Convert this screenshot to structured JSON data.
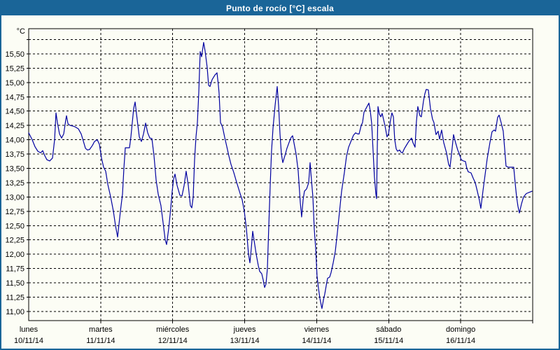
{
  "window": {
    "title": "Punto de rocío [°C] escala"
  },
  "colors": {
    "titlebar": "#1A6598",
    "border": "#1A6598",
    "background": "#FCFDF5",
    "line": "#0000A0",
    "grid": "#000000",
    "axis": "#000000",
    "title_text": "#FFFFFF",
    "label_text": "#000000"
  },
  "chart_data": {
    "type": "line",
    "title": "Punto de rocío [°C] escala",
    "ylabel": "°C",
    "xlabel": "",
    "unit_label": "°C",
    "grid": "dashed",
    "legend": "none",
    "ylim": [
      10.84,
      15.94
    ],
    "xlim_days": [
      0,
      7
    ],
    "y_axis": {
      "tick_step": 0.25,
      "ticks": [
        {
          "v": 15.75,
          "label": ""
        },
        {
          "v": 15.5,
          "label": "15,50"
        },
        {
          "v": 15.25,
          "label": "15,25"
        },
        {
          "v": 15.0,
          "label": "15,00"
        },
        {
          "v": 14.75,
          "label": "14,75"
        },
        {
          "v": 14.5,
          "label": "14,50"
        },
        {
          "v": 14.25,
          "label": "14,25"
        },
        {
          "v": 14.0,
          "label": "14,00"
        },
        {
          "v": 13.75,
          "label": "13,75"
        },
        {
          "v": 13.5,
          "label": "13,50"
        },
        {
          "v": 13.25,
          "label": "13,25"
        },
        {
          "v": 13.0,
          "label": "13,00"
        },
        {
          "v": 12.75,
          "label": "12,75"
        },
        {
          "v": 12.5,
          "label": "12,50"
        },
        {
          "v": 12.25,
          "label": "12,25"
        },
        {
          "v": 12.0,
          "label": "12,00"
        },
        {
          "v": 11.75,
          "label": "11,75"
        },
        {
          "v": 11.5,
          "label": "11,50"
        },
        {
          "v": 11.25,
          "label": "11,25"
        },
        {
          "v": 11.0,
          "label": "11,00"
        }
      ]
    },
    "x_axis": {
      "days": [
        {
          "name": "lunes",
          "date": "10/11/14"
        },
        {
          "name": "martes",
          "date": "11/11/14"
        },
        {
          "name": "miércoles",
          "date": "12/11/14"
        },
        {
          "name": "jueves",
          "date": "13/11/14"
        },
        {
          "name": "viernes",
          "date": "14/11/14"
        },
        {
          "name": "sábado",
          "date": "15/11/14"
        },
        {
          "name": "domingo",
          "date": "16/11/14"
        }
      ]
    },
    "series": [
      {
        "name": "Punto de rocío",
        "color": "#0000A0",
        "points": [
          [
            0.0,
            14.12
          ],
          [
            0.049,
            14.0
          ],
          [
            0.087,
            13.88
          ],
          [
            0.126,
            13.8
          ],
          [
            0.165,
            13.77
          ],
          [
            0.194,
            13.81
          ],
          [
            0.224,
            13.72
          ],
          [
            0.253,
            13.65
          ],
          [
            0.292,
            13.63
          ],
          [
            0.331,
            13.68
          ],
          [
            0.36,
            14.0
          ],
          [
            0.379,
            14.47
          ],
          [
            0.399,
            14.3
          ],
          [
            0.428,
            14.1
          ],
          [
            0.457,
            14.03
          ],
          [
            0.486,
            14.1
          ],
          [
            0.515,
            14.35
          ],
          [
            0.525,
            14.42
          ],
          [
            0.545,
            14.28
          ],
          [
            0.574,
            14.25
          ],
          [
            0.613,
            14.24
          ],
          [
            0.651,
            14.22
          ],
          [
            0.69,
            14.19
          ],
          [
            0.729,
            14.1
          ],
          [
            0.758,
            13.98
          ],
          [
            0.788,
            13.85
          ],
          [
            0.817,
            13.82
          ],
          [
            0.846,
            13.83
          ],
          [
            0.885,
            13.9
          ],
          [
            0.914,
            13.97
          ],
          [
            0.953,
            14.0
          ],
          [
            0.982,
            13.92
          ],
          [
            1.011,
            13.68
          ],
          [
            1.04,
            13.52
          ],
          [
            1.069,
            13.45
          ],
          [
            1.099,
            13.22
          ],
          [
            1.138,
            13.0
          ],
          [
            1.176,
            12.75
          ],
          [
            1.206,
            12.5
          ],
          [
            1.235,
            12.3
          ],
          [
            1.274,
            12.75
          ],
          [
            1.303,
            13.05
          ],
          [
            1.322,
            13.5
          ],
          [
            1.342,
            13.86
          ],
          [
            1.4,
            13.86
          ],
          [
            1.419,
            14.05
          ],
          [
            1.439,
            14.3
          ],
          [
            1.458,
            14.55
          ],
          [
            1.478,
            14.66
          ],
          [
            1.507,
            14.35
          ],
          [
            1.536,
            14.05
          ],
          [
            1.565,
            13.97
          ],
          [
            1.594,
            14.1
          ],
          [
            1.624,
            14.29
          ],
          [
            1.653,
            14.12
          ],
          [
            1.682,
            14.03
          ],
          [
            1.711,
            14.02
          ],
          [
            1.74,
            13.72
          ],
          [
            1.769,
            13.3
          ],
          [
            1.799,
            13.05
          ],
          [
            1.837,
            12.85
          ],
          [
            1.867,
            12.55
          ],
          [
            1.896,
            12.25
          ],
          [
            1.915,
            12.17
          ],
          [
            1.944,
            12.45
          ],
          [
            1.973,
            12.8
          ],
          [
            1.993,
            13.1
          ],
          [
            2.013,
            13.32
          ],
          [
            2.032,
            13.4
          ],
          [
            2.061,
            13.2
          ],
          [
            2.1,
            13.03
          ],
          [
            2.129,
            13.02
          ],
          [
            2.158,
            13.2
          ],
          [
            2.187,
            13.45
          ],
          [
            2.217,
            13.2
          ],
          [
            2.246,
            12.85
          ],
          [
            2.265,
            12.81
          ],
          [
            2.285,
            13.0
          ],
          [
            2.304,
            13.66
          ],
          [
            2.324,
            14.05
          ],
          [
            2.343,
            14.3
          ],
          [
            2.362,
            14.8
          ],
          [
            2.382,
            15.54
          ],
          [
            2.401,
            15.45
          ],
          [
            2.43,
            15.7
          ],
          [
            2.45,
            15.55
          ],
          [
            2.479,
            15.26
          ],
          [
            2.499,
            14.95
          ],
          [
            2.518,
            14.93
          ],
          [
            2.547,
            15.05
          ],
          [
            2.586,
            15.13
          ],
          [
            2.615,
            15.17
          ],
          [
            2.635,
            14.95
          ],
          [
            2.644,
            14.81
          ],
          [
            2.664,
            14.3
          ],
          [
            2.693,
            14.22
          ],
          [
            2.722,
            14.04
          ],
          [
            2.751,
            13.88
          ],
          [
            2.78,
            13.72
          ],
          [
            2.81,
            13.57
          ],
          [
            2.848,
            13.43
          ],
          [
            2.878,
            13.3
          ],
          [
            2.907,
            13.18
          ],
          [
            2.936,
            13.06
          ],
          [
            2.965,
            12.95
          ],
          [
            2.994,
            12.75
          ],
          [
            3.024,
            12.45
          ],
          [
            3.053,
            12.0
          ],
          [
            3.072,
            11.85
          ],
          [
            3.092,
            12.1
          ],
          [
            3.111,
            12.4
          ],
          [
            3.13,
            12.25
          ],
          [
            3.16,
            12.0
          ],
          [
            3.189,
            11.8
          ],
          [
            3.208,
            11.7
          ],
          [
            3.237,
            11.66
          ],
          [
            3.257,
            11.55
          ],
          [
            3.276,
            11.42
          ],
          [
            3.296,
            11.48
          ],
          [
            3.315,
            11.75
          ],
          [
            3.335,
            12.5
          ],
          [
            3.354,
            13.2
          ],
          [
            3.373,
            13.8
          ],
          [
            3.393,
            14.2
          ],
          [
            3.422,
            14.6
          ],
          [
            3.451,
            14.93
          ],
          [
            3.471,
            14.6
          ],
          [
            3.49,
            14.1
          ],
          [
            3.51,
            13.75
          ],
          [
            3.529,
            13.6
          ],
          [
            3.558,
            13.72
          ],
          [
            3.587,
            13.85
          ],
          [
            3.616,
            13.95
          ],
          [
            3.645,
            14.04
          ],
          [
            3.665,
            14.07
          ],
          [
            3.684,
            13.95
          ],
          [
            3.714,
            13.75
          ],
          [
            3.743,
            13.45
          ],
          [
            3.772,
            12.9
          ],
          [
            3.791,
            12.65
          ],
          [
            3.811,
            12.95
          ],
          [
            3.83,
            13.1
          ],
          [
            3.86,
            13.14
          ],
          [
            3.889,
            13.25
          ],
          [
            3.908,
            13.6
          ],
          [
            3.927,
            13.3
          ],
          [
            3.947,
            13.0
          ],
          [
            3.966,
            12.45
          ],
          [
            3.986,
            12.1
          ],
          [
            4.005,
            11.62
          ],
          [
            4.025,
            11.4
          ],
          [
            4.044,
            11.23
          ],
          [
            4.064,
            11.1
          ],
          [
            4.073,
            11.05
          ],
          [
            4.093,
            11.2
          ],
          [
            4.112,
            11.3
          ],
          [
            4.132,
            11.45
          ],
          [
            4.151,
            11.58
          ],
          [
            4.18,
            11.6
          ],
          [
            4.2,
            11.68
          ],
          [
            4.229,
            11.85
          ],
          [
            4.258,
            12.05
          ],
          [
            4.287,
            12.37
          ],
          [
            4.316,
            12.73
          ],
          [
            4.346,
            13.1
          ],
          [
            4.384,
            13.42
          ],
          [
            4.414,
            13.71
          ],
          [
            4.443,
            13.87
          ],
          [
            4.482,
            13.99
          ],
          [
            4.511,
            14.08
          ],
          [
            4.54,
            14.12
          ],
          [
            4.569,
            14.1
          ],
          [
            4.589,
            14.1
          ],
          [
            4.618,
            14.25
          ],
          [
            4.637,
            14.3
          ],
          [
            4.657,
            14.48
          ],
          [
            4.686,
            14.55
          ],
          [
            4.725,
            14.64
          ],
          [
            4.744,
            14.5
          ],
          [
            4.764,
            14.28
          ],
          [
            4.783,
            13.8
          ],
          [
            4.802,
            13.35
          ],
          [
            4.822,
            13.05
          ],
          [
            4.832,
            12.97
          ],
          [
            4.841,
            13.8
          ],
          [
            4.851,
            14.58
          ],
          [
            4.87,
            14.45
          ],
          [
            4.89,
            14.4
          ],
          [
            4.909,
            14.46
          ],
          [
            4.929,
            14.35
          ],
          [
            4.948,
            14.25
          ],
          [
            4.977,
            14.05
          ],
          [
            4.997,
            14.1
          ],
          [
            5.026,
            14.35
          ],
          [
            5.045,
            14.47
          ],
          [
            5.065,
            14.4
          ],
          [
            5.084,
            14.0
          ],
          [
            5.104,
            13.84
          ],
          [
            5.123,
            13.8
          ],
          [
            5.152,
            13.82
          ],
          [
            5.172,
            13.78
          ],
          [
            5.191,
            13.77
          ],
          [
            5.22,
            13.85
          ],
          [
            5.249,
            13.91
          ],
          [
            5.278,
            13.97
          ],
          [
            5.317,
            14.03
          ],
          [
            5.337,
            13.95
          ],
          [
            5.366,
            13.87
          ],
          [
            5.385,
            14.32
          ],
          [
            5.405,
            14.58
          ],
          [
            5.434,
            14.42
          ],
          [
            5.453,
            14.4
          ],
          [
            5.482,
            14.67
          ],
          [
            5.502,
            14.8
          ],
          [
            5.521,
            14.88
          ],
          [
            5.55,
            14.87
          ],
          [
            5.58,
            14.55
          ],
          [
            5.609,
            14.36
          ],
          [
            5.628,
            14.3
          ],
          [
            5.657,
            14.09
          ],
          [
            5.687,
            14.15
          ],
          [
            5.706,
            14.01
          ],
          [
            5.735,
            14.17
          ],
          [
            5.764,
            13.95
          ],
          [
            5.803,
            13.77
          ],
          [
            5.832,
            13.57
          ],
          [
            5.852,
            13.52
          ],
          [
            5.881,
            13.85
          ],
          [
            5.9,
            14.09
          ],
          [
            5.929,
            13.95
          ],
          [
            5.959,
            13.82
          ],
          [
            5.978,
            13.76
          ],
          [
            6.007,
            13.65
          ],
          [
            6.037,
            13.63
          ],
          [
            6.066,
            13.62
          ],
          [
            6.085,
            13.5
          ],
          [
            6.105,
            13.44
          ],
          [
            6.143,
            13.42
          ],
          [
            6.173,
            13.33
          ],
          [
            6.202,
            13.25
          ],
          [
            6.231,
            13.1
          ],
          [
            6.26,
            12.94
          ],
          [
            6.28,
            12.8
          ],
          [
            6.309,
            13.1
          ],
          [
            6.338,
            13.38
          ],
          [
            6.367,
            13.66
          ],
          [
            6.406,
            13.95
          ],
          [
            6.435,
            14.14
          ],
          [
            6.465,
            14.17
          ],
          [
            6.484,
            14.15
          ],
          [
            6.513,
            14.39
          ],
          [
            6.533,
            14.43
          ],
          [
            6.562,
            14.3
          ],
          [
            6.591,
            14.15
          ],
          [
            6.61,
            13.85
          ],
          [
            6.63,
            13.54
          ],
          [
            6.659,
            13.52
          ],
          [
            6.698,
            13.52
          ],
          [
            6.737,
            13.52
          ],
          [
            6.756,
            13.25
          ],
          [
            6.776,
            13.0
          ],
          [
            6.795,
            12.84
          ],
          [
            6.815,
            12.72
          ],
          [
            6.844,
            12.88
          ],
          [
            6.873,
            13.0
          ],
          [
            6.912,
            13.06
          ],
          [
            6.951,
            13.08
          ],
          [
            6.99,
            13.1
          ]
        ]
      }
    ]
  }
}
